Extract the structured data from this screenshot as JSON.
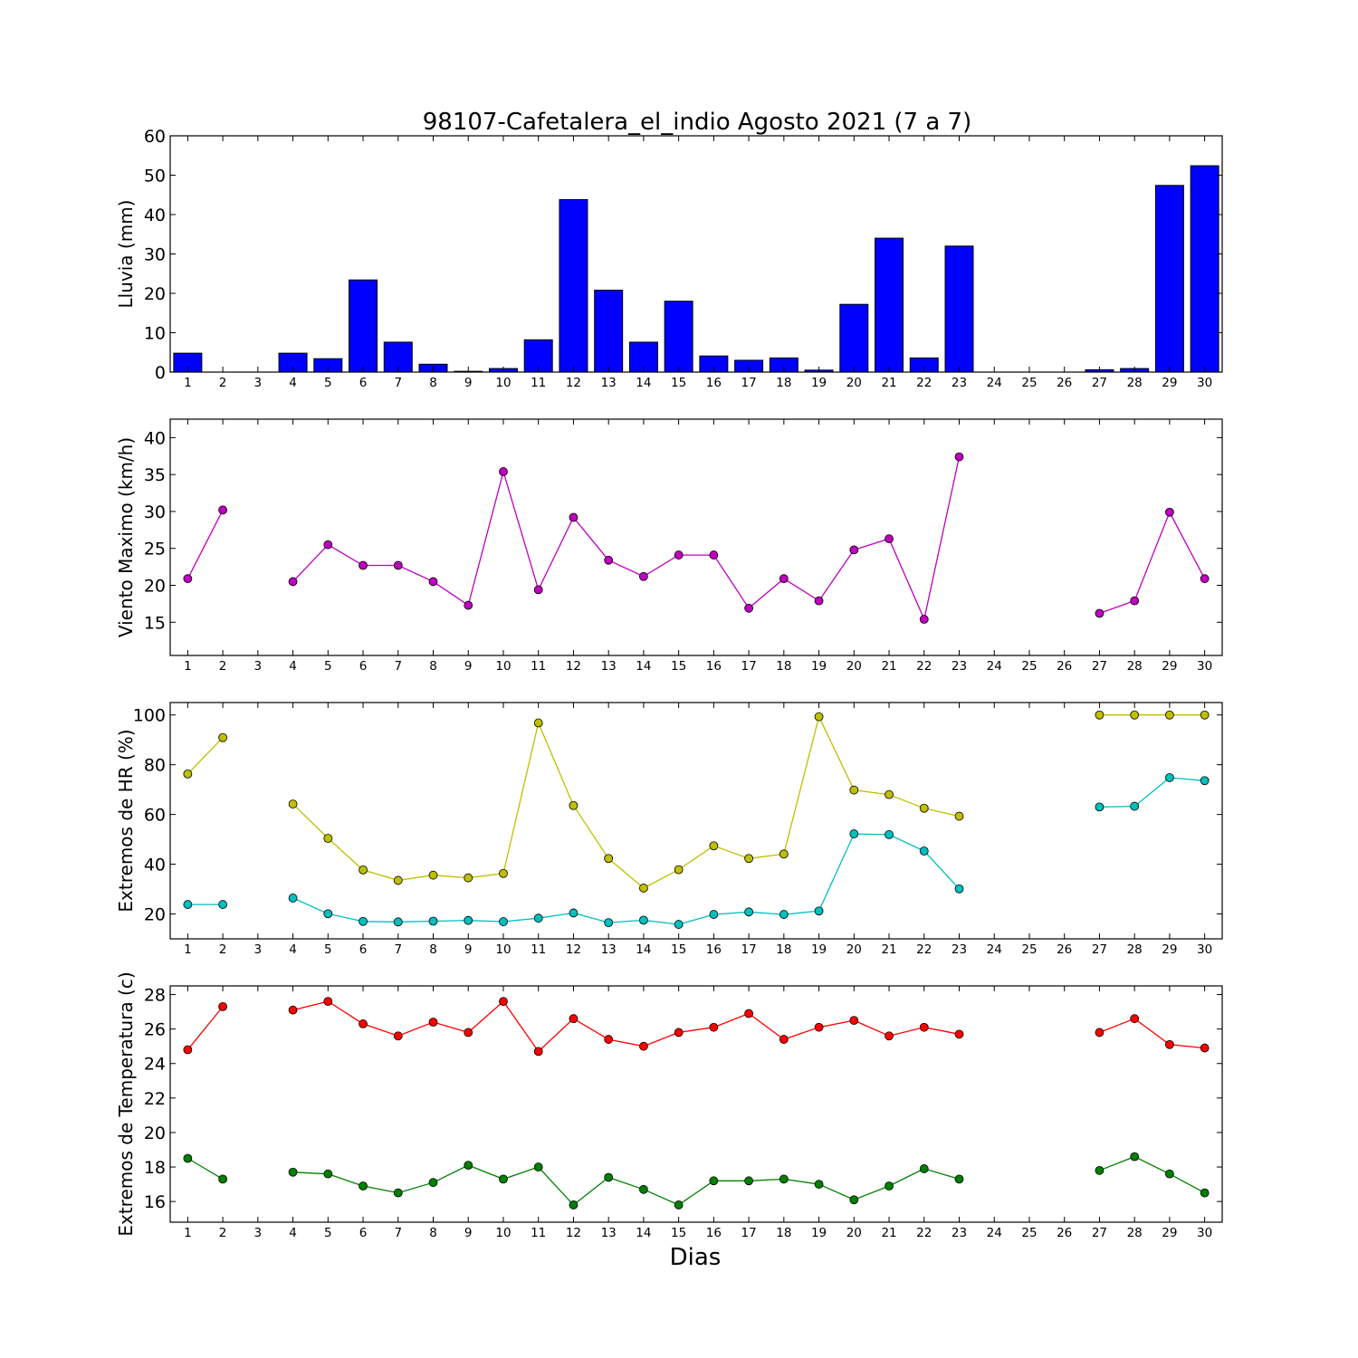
{
  "chart_data": {
    "title": "98107-Cafetalera_el_indio Agosto 2021  (7 a 7)",
    "xlabel": "Dias",
    "days": [
      1,
      2,
      3,
      4,
      5,
      6,
      7,
      8,
      9,
      10,
      11,
      12,
      13,
      14,
      15,
      16,
      17,
      18,
      19,
      20,
      21,
      22,
      23,
      24,
      25,
      26,
      27,
      28,
      29,
      30
    ],
    "xlim": [
      0.5,
      30.5
    ],
    "panels": [
      {
        "type": "bar",
        "ylabel": "Lluvia (mm)",
        "ylim": [
          0,
          60
        ],
        "yticks": [
          0,
          10,
          20,
          30,
          40,
          50,
          60
        ],
        "series": [
          {
            "color": "#0000ff",
            "values": [
              4.8,
              0,
              0,
              4.8,
              3.4,
              23.4,
              7.6,
              2.0,
              0.2,
              0.9,
              8.2,
              43.8,
              20.8,
              7.6,
              18.0,
              4.1,
              3.0,
              3.6,
              0.5,
              17.2,
              34.0,
              3.6,
              32.0,
              0,
              0,
              0,
              0.6,
              0.9,
              47.4,
              52.4
            ]
          }
        ]
      },
      {
        "type": "line",
        "ylabel": "Viento Maximo (km/h)",
        "ylim": [
          10.5,
          42.5
        ],
        "yticks": [
          15,
          20,
          25,
          30,
          35,
          40
        ],
        "series": [
          {
            "color": "#bf00bf",
            "values": [
              20.9,
              30.2,
              null,
              20.5,
              25.5,
              22.7,
              22.7,
              20.5,
              17.3,
              35.4,
              19.4,
              29.2,
              23.4,
              21.2,
              24.1,
              24.1,
              16.9,
              20.9,
              17.9,
              24.8,
              26.3,
              15.4,
              37.4,
              null,
              null,
              null,
              16.2,
              17.9,
              29.9,
              20.9
            ]
          }
        ]
      },
      {
        "type": "line",
        "ylabel": "Extremos de HR (%)",
        "ylim": [
          10,
          105
        ],
        "yticks": [
          20,
          40,
          60,
          80,
          100
        ],
        "series": [
          {
            "color": "#bfbf00",
            "values": [
              76.3,
              90.9,
              null,
              64.2,
              50.4,
              37.7,
              33.5,
              35.6,
              34.5,
              36.3,
              96.8,
              63.6,
              42.3,
              30.4,
              37.8,
              47.4,
              42.3,
              44.1,
              99.3,
              69.8,
              68.0,
              62.5,
              59.3,
              null,
              null,
              null,
              100,
              100,
              100,
              100
            ]
          },
          {
            "color": "#00bfbf",
            "values": [
              23.8,
              23.8,
              null,
              26.4,
              20.1,
              17.0,
              16.8,
              17.1,
              17.4,
              16.9,
              18.3,
              20.4,
              16.5,
              17.5,
              15.8,
              19.8,
              20.8,
              19.8,
              21.2,
              52.2,
              51.9,
              45.3,
              30.1,
              null,
              null,
              null,
              63.0,
              63.3,
              74.8,
              73.6
            ]
          }
        ]
      },
      {
        "type": "line",
        "ylabel": "Extremos de Temperatura (c)",
        "ylim": [
          14.8,
          28.5
        ],
        "yticks": [
          16,
          18,
          20,
          22,
          24,
          26,
          28
        ],
        "series": [
          {
            "color": "#ff0000",
            "values": [
              24.8,
              27.3,
              null,
              27.1,
              27.6,
              26.3,
              25.6,
              26.4,
              25.8,
              27.6,
              24.7,
              26.6,
              25.4,
              25.0,
              25.8,
              26.1,
              26.9,
              25.4,
              26.1,
              26.5,
              25.6,
              26.1,
              25.7,
              null,
              null,
              null,
              25.8,
              26.6,
              25.1,
              24.9
            ]
          },
          {
            "color": "#008000",
            "values": [
              18.5,
              17.3,
              null,
              17.7,
              17.6,
              16.9,
              16.5,
              17.1,
              18.1,
              17.3,
              18.0,
              15.8,
              17.4,
              16.7,
              15.8,
              17.2,
              17.2,
              17.3,
              17.0,
              16.1,
              16.9,
              17.9,
              17.3,
              null,
              null,
              null,
              17.8,
              18.6,
              17.6,
              16.5
            ]
          }
        ]
      }
    ]
  }
}
